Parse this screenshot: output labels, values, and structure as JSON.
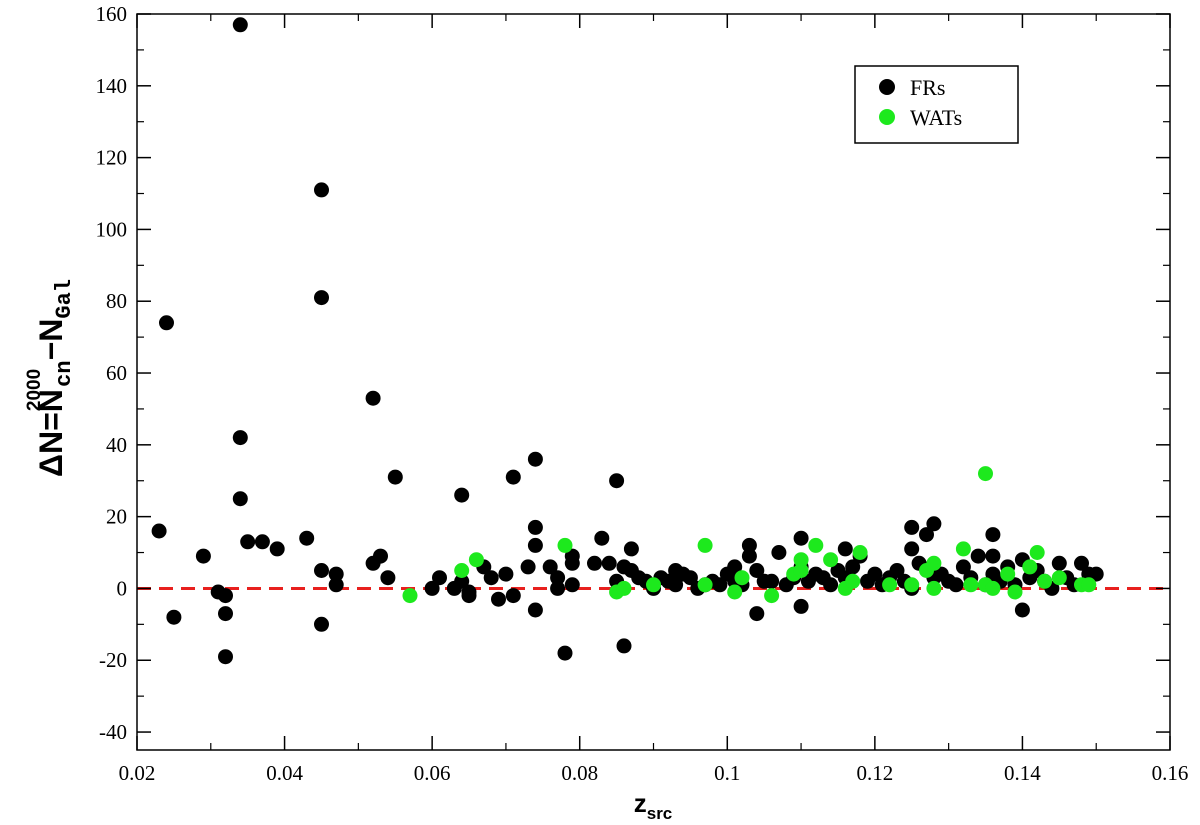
{
  "chart_data": {
    "type": "scatter",
    "title": "",
    "xlabel": {
      "main": "z",
      "sub": "src"
    },
    "ylabel": {
      "main": "ΔN=N",
      "sup": "2000",
      "sub1": "cn",
      "mid": "−N",
      "sub2": "Gal"
    },
    "xlim": [
      0.02,
      0.16
    ],
    "ylim": [
      -45,
      160
    ],
    "x_ticks": [
      0.02,
      0.04,
      0.06,
      0.08,
      0.1,
      0.12,
      0.14,
      0.16
    ],
    "x_tick_labels": [
      "0.02",
      "0.04",
      "0.06",
      "0.08",
      "0.1",
      "0.12",
      "0.14",
      "0.16"
    ],
    "y_ticks": [
      -40,
      -20,
      0,
      20,
      40,
      60,
      80,
      100,
      120,
      140,
      160
    ],
    "y_tick_labels": [
      "-40",
      "-20",
      "0",
      "20",
      "40",
      "60",
      "80",
      "100",
      "120",
      "140",
      "160"
    ],
    "grid": false,
    "legend_position": "top-right",
    "reference_line": {
      "y": 0,
      "style": "dashed",
      "color": "#e8201e"
    },
    "series": [
      {
        "name": "FRs",
        "color": "#000000",
        "points": [
          [
            0.023,
            16
          ],
          [
            0.024,
            74
          ],
          [
            0.025,
            -8
          ],
          [
            0.029,
            9
          ],
          [
            0.031,
            -1
          ],
          [
            0.032,
            -2
          ],
          [
            0.032,
            -7
          ],
          [
            0.032,
            -19
          ],
          [
            0.034,
            157
          ],
          [
            0.034,
            42
          ],
          [
            0.034,
            25
          ],
          [
            0.035,
            13
          ],
          [
            0.037,
            13
          ],
          [
            0.039,
            11
          ],
          [
            0.043,
            14
          ],
          [
            0.045,
            111
          ],
          [
            0.045,
            81
          ],
          [
            0.045,
            5
          ],
          [
            0.045,
            -10
          ],
          [
            0.047,
            4
          ],
          [
            0.047,
            1
          ],
          [
            0.052,
            53
          ],
          [
            0.052,
            7
          ],
          [
            0.053,
            9
          ],
          [
            0.054,
            3
          ],
          [
            0.055,
            31
          ],
          [
            0.06,
            0
          ],
          [
            0.061,
            3
          ],
          [
            0.063,
            0
          ],
          [
            0.064,
            26
          ],
          [
            0.064,
            2
          ],
          [
            0.065,
            -1
          ],
          [
            0.065,
            -2
          ],
          [
            0.067,
            6
          ],
          [
            0.068,
            3
          ],
          [
            0.069,
            -3
          ],
          [
            0.07,
            4
          ],
          [
            0.071,
            31
          ],
          [
            0.071,
            -2
          ],
          [
            0.073,
            6
          ],
          [
            0.074,
            36
          ],
          [
            0.074,
            17
          ],
          [
            0.074,
            12
          ],
          [
            0.074,
            -6
          ],
          [
            0.076,
            6
          ],
          [
            0.077,
            3
          ],
          [
            0.077,
            0
          ],
          [
            0.078,
            -18
          ],
          [
            0.079,
            9
          ],
          [
            0.079,
            7
          ],
          [
            0.079,
            1
          ],
          [
            0.082,
            7
          ],
          [
            0.083,
            14
          ],
          [
            0.084,
            7
          ],
          [
            0.085,
            30
          ],
          [
            0.085,
            2
          ],
          [
            0.086,
            -16
          ],
          [
            0.086,
            6
          ],
          [
            0.087,
            11
          ],
          [
            0.087,
            5
          ],
          [
            0.088,
            3
          ],
          [
            0.089,
            2
          ],
          [
            0.09,
            0
          ],
          [
            0.091,
            3
          ],
          [
            0.092,
            2
          ],
          [
            0.093,
            5
          ],
          [
            0.093,
            1
          ],
          [
            0.094,
            4
          ],
          [
            0.095,
            3
          ],
          [
            0.096,
            0
          ],
          [
            0.097,
            1
          ],
          [
            0.098,
            2
          ],
          [
            0.099,
            1
          ],
          [
            0.1,
            4
          ],
          [
            0.101,
            6
          ],
          [
            0.101,
            2
          ],
          [
            0.102,
            1
          ],
          [
            0.103,
            12
          ],
          [
            0.103,
            9
          ],
          [
            0.104,
            -7
          ],
          [
            0.104,
            5
          ],
          [
            0.105,
            2
          ],
          [
            0.106,
            2
          ],
          [
            0.107,
            10
          ],
          [
            0.108,
            1
          ],
          [
            0.109,
            3
          ],
          [
            0.11,
            14
          ],
          [
            0.11,
            -5
          ],
          [
            0.11,
            6
          ],
          [
            0.111,
            2
          ],
          [
            0.112,
            4
          ],
          [
            0.113,
            3
          ],
          [
            0.114,
            1
          ],
          [
            0.115,
            5
          ],
          [
            0.116,
            11
          ],
          [
            0.116,
            3
          ],
          [
            0.117,
            6
          ],
          [
            0.118,
            9
          ],
          [
            0.119,
            2
          ],
          [
            0.12,
            4
          ],
          [
            0.121,
            1
          ],
          [
            0.122,
            3
          ],
          [
            0.123,
            5
          ],
          [
            0.124,
            2
          ],
          [
            0.125,
            17
          ],
          [
            0.125,
            11
          ],
          [
            0.125,
            0
          ],
          [
            0.126,
            7
          ],
          [
            0.127,
            15
          ],
          [
            0.128,
            18
          ],
          [
            0.128,
            3
          ],
          [
            0.129,
            4
          ],
          [
            0.13,
            2
          ],
          [
            0.131,
            1
          ],
          [
            0.132,
            6
          ],
          [
            0.133,
            3
          ],
          [
            0.134,
            9
          ],
          [
            0.135,
            1
          ],
          [
            0.136,
            15
          ],
          [
            0.136,
            9
          ],
          [
            0.136,
            4
          ],
          [
            0.137,
            2
          ],
          [
            0.138,
            6
          ],
          [
            0.139,
            1
          ],
          [
            0.14,
            -6
          ],
          [
            0.14,
            8
          ],
          [
            0.141,
            3
          ],
          [
            0.142,
            5
          ],
          [
            0.143,
            2
          ],
          [
            0.144,
            0
          ],
          [
            0.145,
            7
          ],
          [
            0.146,
            3
          ],
          [
            0.147,
            1
          ],
          [
            0.148,
            7
          ],
          [
            0.149,
            4
          ],
          [
            0.15,
            4
          ]
        ]
      },
      {
        "name": "WATs",
        "color": "#1de91d",
        "points": [
          [
            0.057,
            -2
          ],
          [
            0.064,
            5
          ],
          [
            0.066,
            8
          ],
          [
            0.078,
            12
          ],
          [
            0.085,
            -1
          ],
          [
            0.086,
            0
          ],
          [
            0.09,
            1
          ],
          [
            0.097,
            1
          ],
          [
            0.097,
            12
          ],
          [
            0.101,
            -1
          ],
          [
            0.102,
            3
          ],
          [
            0.106,
            -2
          ],
          [
            0.109,
            4
          ],
          [
            0.11,
            8
          ],
          [
            0.11,
            5
          ],
          [
            0.112,
            12
          ],
          [
            0.114,
            8
          ],
          [
            0.116,
            0
          ],
          [
            0.117,
            2
          ],
          [
            0.118,
            10
          ],
          [
            0.122,
            1
          ],
          [
            0.125,
            1
          ],
          [
            0.127,
            5
          ],
          [
            0.128,
            7
          ],
          [
            0.128,
            0
          ],
          [
            0.132,
            11
          ],
          [
            0.133,
            1
          ],
          [
            0.135,
            32
          ],
          [
            0.135,
            1
          ],
          [
            0.136,
            0
          ],
          [
            0.138,
            4
          ],
          [
            0.139,
            -1
          ],
          [
            0.141,
            6
          ],
          [
            0.142,
            10
          ],
          [
            0.143,
            2
          ],
          [
            0.145,
            3
          ],
          [
            0.148,
            1
          ],
          [
            0.149,
            1
          ]
        ]
      }
    ]
  }
}
